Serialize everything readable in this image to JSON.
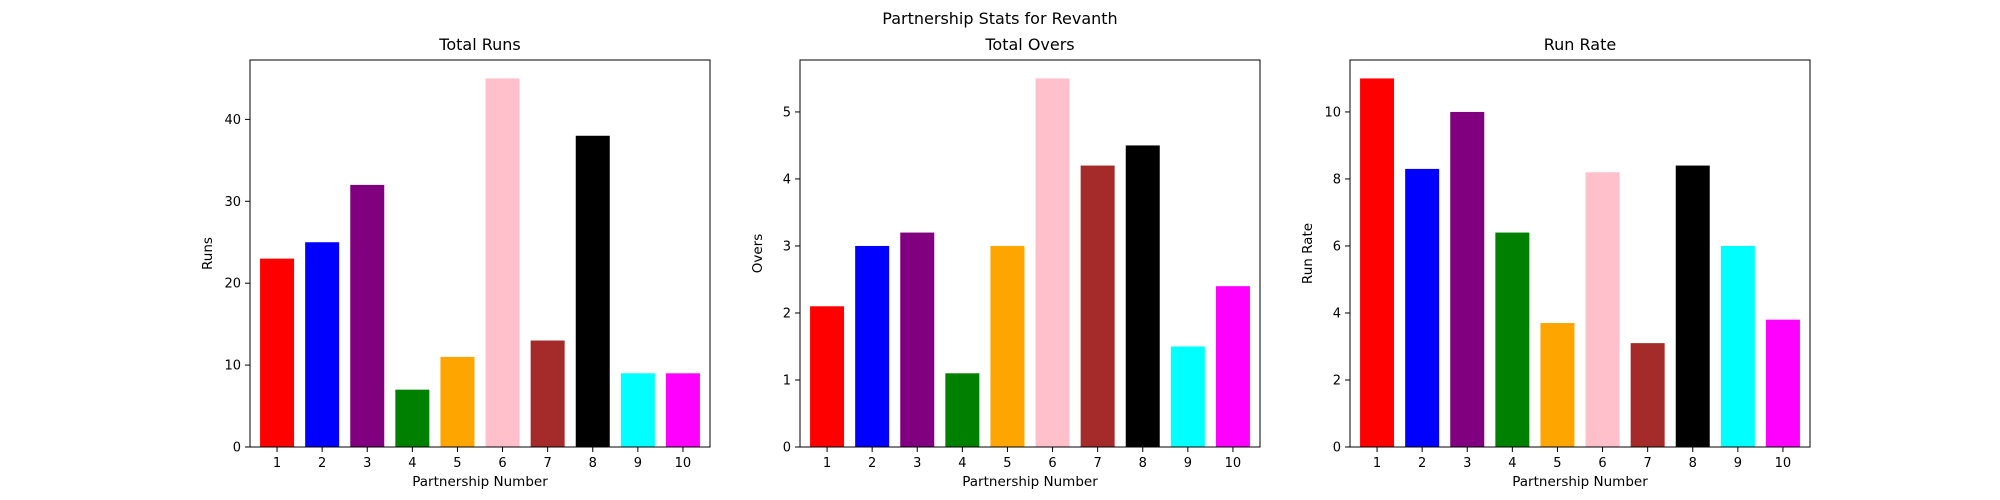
{
  "suptitle": "Partnership Stats for Revanth",
  "chart_data": [
    {
      "type": "bar",
      "title": "Total Runs",
      "xlabel": "Partnership Number",
      "ylabel": "Runs",
      "categories": [
        "1",
        "2",
        "3",
        "4",
        "5",
        "6",
        "7",
        "8",
        "9",
        "10"
      ],
      "values": [
        23,
        25,
        32,
        7,
        11,
        45,
        13,
        38,
        9,
        9
      ],
      "colors": [
        "#ff0000",
        "#0000ff",
        "#800080",
        "#008000",
        "#ffa500",
        "#ffc0cb",
        "#a52a2a",
        "#000000",
        "#00ffff",
        "#ff00ff"
      ],
      "ylim": [
        0,
        47.25
      ],
      "yticks": [
        0,
        10,
        20,
        30,
        40
      ],
      "grid": false
    },
    {
      "type": "bar",
      "title": "Total Overs",
      "xlabel": "Partnership Number",
      "ylabel": "Overs",
      "categories": [
        "1",
        "2",
        "3",
        "4",
        "5",
        "6",
        "7",
        "8",
        "9",
        "10"
      ],
      "values": [
        2.1,
        3.0,
        3.2,
        1.1,
        3.0,
        5.5,
        4.2,
        4.5,
        1.5,
        2.4
      ],
      "colors": [
        "#ff0000",
        "#0000ff",
        "#800080",
        "#008000",
        "#ffa500",
        "#ffc0cb",
        "#a52a2a",
        "#000000",
        "#00ffff",
        "#ff00ff"
      ],
      "ylim": [
        0,
        5.775
      ],
      "yticks": [
        0,
        1,
        2,
        3,
        4,
        5
      ],
      "grid": false
    },
    {
      "type": "bar",
      "title": "Run Rate",
      "xlabel": "Partnership Number",
      "ylabel": "Run Rate",
      "categories": [
        "1",
        "2",
        "3",
        "4",
        "5",
        "6",
        "7",
        "8",
        "9",
        "10"
      ],
      "values": [
        11.0,
        8.3,
        10.0,
        6.4,
        3.7,
        8.2,
        3.1,
        8.4,
        6.0,
        3.8
      ],
      "colors": [
        "#ff0000",
        "#0000ff",
        "#800080",
        "#008000",
        "#ffa500",
        "#ffc0cb",
        "#a52a2a",
        "#000000",
        "#00ffff",
        "#ff00ff"
      ],
      "ylim": [
        0,
        11.55
      ],
      "yticks": [
        0,
        2,
        4,
        6,
        8,
        10
      ],
      "grid": false
    }
  ]
}
